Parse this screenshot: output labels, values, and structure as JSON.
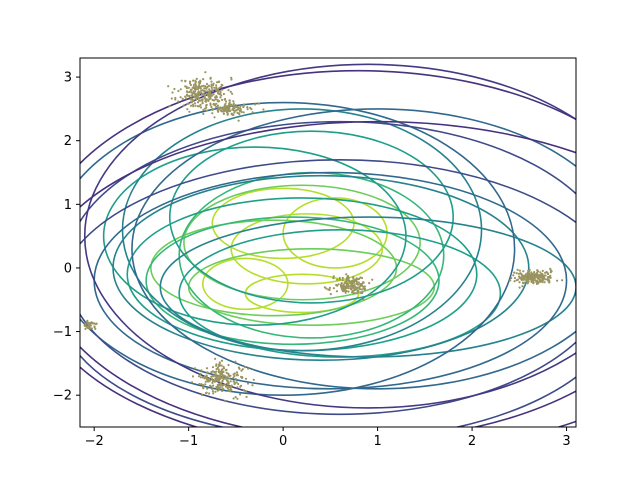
{
  "chart_data": {
    "type": "scatter",
    "title": "",
    "xlabel": "",
    "ylabel": "",
    "xlim": [
      -2.15,
      3.1
    ],
    "ylim": [
      -2.5,
      3.3
    ],
    "xticks": [
      -2,
      -1,
      0,
      1,
      2,
      3
    ],
    "xtick_labels": [
      "−2",
      "−1",
      "0",
      "1",
      "2",
      "3"
    ],
    "yticks": [
      -2,
      -1,
      0,
      1,
      2,
      3
    ],
    "ytick_labels": [
      "−2",
      "−1",
      "0",
      "1",
      "2",
      "3"
    ],
    "grid": false,
    "legend": "none",
    "point_color": "#9a9460",
    "clusters": [
      {
        "cx": -0.85,
        "cy": 2.75,
        "sx": 0.13,
        "sy": 0.12,
        "n": 260,
        "seed": 11
      },
      {
        "cx": -0.55,
        "cy": 2.5,
        "sx": 0.12,
        "sy": 0.06,
        "n": 110,
        "seed": 12
      },
      {
        "cx": 0.72,
        "cy": -0.28,
        "sx": 0.09,
        "sy": 0.07,
        "n": 170,
        "seed": 21
      },
      {
        "cx": 2.65,
        "cy": -0.15,
        "sx": 0.11,
        "sy": 0.055,
        "n": 210,
        "seed": 31
      },
      {
        "cx": -0.65,
        "cy": -1.75,
        "sx": 0.13,
        "sy": 0.12,
        "n": 230,
        "seed": 41
      },
      {
        "cx": -2.05,
        "cy": -0.9,
        "sx": 0.04,
        "sy": 0.04,
        "n": 35,
        "seed": 51
      }
    ],
    "contour_ellipses": [
      {
        "cx": 0.2,
        "cy": -0.4,
        "rx": 0.6,
        "ry": 0.3,
        "color": "#b5de2b"
      },
      {
        "cx": -0.4,
        "cy": -0.25,
        "rx": 0.45,
        "ry": 0.4,
        "color": "#b5de2b"
      },
      {
        "cx": 0.55,
        "cy": 0.55,
        "rx": 0.55,
        "ry": 0.55,
        "color": "#b5de2b"
      },
      {
        "cx": 0.25,
        "cy": 0.3,
        "rx": 0.8,
        "ry": 0.55,
        "color": "#b5de2b"
      },
      {
        "cx": 0.0,
        "cy": 0.7,
        "rx": 0.75,
        "ry": 0.55,
        "color": "#b5de2b"
      },
      {
        "cx": -0.1,
        "cy": 0.0,
        "rx": 1.3,
        "ry": 0.75,
        "color": "#6ccd5a"
      },
      {
        "cx": 0.3,
        "cy": -0.3,
        "rx": 1.3,
        "ry": 0.6,
        "color": "#6ccd5a"
      },
      {
        "cx": 0.2,
        "cy": 0.4,
        "rx": 1.25,
        "ry": 0.9,
        "color": "#6ccd5a"
      },
      {
        "cx": 0.1,
        "cy": -0.2,
        "rx": 1.55,
        "ry": 1.0,
        "color": "#35b779"
      },
      {
        "cx": 0.3,
        "cy": 0.2,
        "rx": 1.4,
        "ry": 1.3,
        "color": "#35b779"
      },
      {
        "cx": 0.2,
        "cy": -0.1,
        "rx": 1.85,
        "ry": 1.2,
        "color": "#1f9e89"
      },
      {
        "cx": -0.3,
        "cy": 0.5,
        "rx": 1.6,
        "ry": 1.4,
        "color": "#1f9e89"
      },
      {
        "cx": 0.3,
        "cy": 0.8,
        "rx": 1.5,
        "ry": 1.35,
        "color": "#1f9e89"
      },
      {
        "cx": 0.6,
        "cy": -0.4,
        "rx": 1.7,
        "ry": 1.0,
        "color": "#1f9e89"
      },
      {
        "cx": 0.4,
        "cy": 0.0,
        "rx": 2.2,
        "ry": 1.45,
        "color": "#26828e"
      },
      {
        "cx": 0.2,
        "cy": 0.6,
        "rx": 1.9,
        "ry": 1.9,
        "color": "#26828e"
      },
      {
        "cx": 0.9,
        "cy": -0.3,
        "rx": 2.2,
        "ry": 1.1,
        "color": "#26828e"
      },
      {
        "cx": 0.5,
        "cy": -0.2,
        "rx": 2.5,
        "ry": 1.7,
        "color": "#31688e"
      },
      {
        "cx": 0.0,
        "cy": 0.3,
        "rx": 2.45,
        "ry": 2.3,
        "color": "#31688e"
      },
      {
        "cx": 1.0,
        "cy": 0.3,
        "rx": 2.6,
        "ry": 2.2,
        "color": "#31688e"
      },
      {
        "cx": 0.6,
        "cy": 0.0,
        "rx": 2.9,
        "ry": 2.3,
        "color": "#3e4a89"
      },
      {
        "cx": 0.6,
        "cy": -0.5,
        "rx": 3.0,
        "ry": 2.2,
        "color": "#3e4a89"
      },
      {
        "cx": 0.9,
        "cy": 0.5,
        "rx": 3.0,
        "ry": 2.7,
        "color": "#443983"
      },
      {
        "cx": 0.8,
        "cy": 0.2,
        "rx": 3.4,
        "ry": 2.9,
        "color": "#46327e"
      },
      {
        "cx": 1.0,
        "cy": -0.3,
        "rx": 3.6,
        "ry": 2.6,
        "color": "#46327e"
      }
    ]
  }
}
